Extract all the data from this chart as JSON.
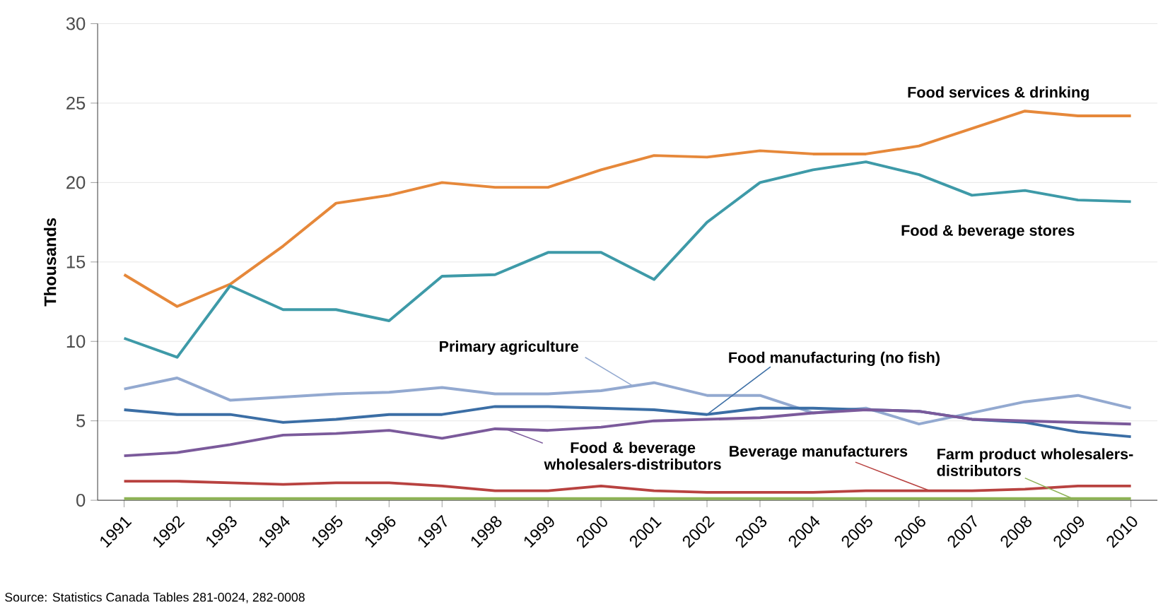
{
  "chart_data": {
    "type": "line",
    "categories": [
      "1991",
      "1992",
      "1993",
      "1994",
      "1995",
      "1996",
      "1997",
      "1998",
      "1999",
      "2000",
      "2001",
      "2002",
      "2003",
      "2004",
      "2005",
      "2006",
      "2007",
      "2008",
      "2009",
      "2010"
    ],
    "ylabel": "Thousands",
    "ylim": [
      0,
      30
    ],
    "yticks": [
      0,
      5,
      10,
      15,
      20,
      25,
      30
    ],
    "grid": "y",
    "marker": "none",
    "line_style": "solid",
    "series": [
      {
        "name": "Food services & drinking",
        "color": "#e6883a",
        "values": [
          14.2,
          12.2,
          13.6,
          16.0,
          18.7,
          19.2,
          20.0,
          19.7,
          19.7,
          20.8,
          21.7,
          21.6,
          22.0,
          21.8,
          21.8,
          22.3,
          23.4,
          24.5,
          24.2,
          24.2
        ]
      },
      {
        "name": "Food & beverage stores",
        "color": "#3e9aa8",
        "values": [
          10.2,
          9.0,
          13.5,
          12.0,
          12.0,
          11.3,
          14.1,
          14.2,
          15.6,
          15.6,
          13.9,
          17.5,
          20.0,
          20.8,
          21.3,
          20.5,
          19.2,
          19.5,
          18.9,
          18.8
        ]
      },
      {
        "name": "Primary agriculture",
        "color": "#93a9d0",
        "values": [
          7.0,
          7.7,
          6.3,
          6.5,
          6.7,
          6.8,
          7.1,
          6.7,
          6.7,
          6.9,
          7.4,
          6.6,
          6.6,
          5.5,
          5.8,
          4.8,
          5.5,
          6.2,
          6.6,
          5.8
        ]
      },
      {
        "name": "Food manufacturing (no fish)",
        "color": "#3b6ea5",
        "values": [
          5.7,
          5.4,
          5.4,
          4.9,
          5.1,
          5.4,
          5.4,
          5.9,
          5.9,
          5.8,
          5.7,
          5.4,
          5.8,
          5.8,
          5.7,
          5.6,
          5.1,
          4.9,
          4.3,
          4.0
        ]
      },
      {
        "name": "Food & beverage wholesalers-distributors",
        "color": "#7b5a9b",
        "values": [
          2.8,
          3.0,
          3.5,
          4.1,
          4.2,
          4.4,
          3.9,
          4.5,
          4.4,
          4.6,
          5.0,
          5.1,
          5.2,
          5.5,
          5.7,
          5.6,
          5.1,
          5.0,
          4.9,
          4.8
        ]
      },
      {
        "name": "Beverage manufacturers",
        "color": "#b84240",
        "values": [
          1.2,
          1.2,
          1.1,
          1.0,
          1.1,
          1.1,
          0.9,
          0.6,
          0.6,
          0.9,
          0.6,
          0.5,
          0.5,
          0.5,
          0.6,
          0.6,
          0.6,
          0.7,
          0.9,
          0.9
        ]
      },
      {
        "name": "Farm product wholesalers-distributors",
        "color": "#8db255",
        "values": [
          0.1,
          0.1,
          0.1,
          0.1,
          0.1,
          0.1,
          0.1,
          0.1,
          0.1,
          0.1,
          0.1,
          0.1,
          0.1,
          0.1,
          0.1,
          0.1,
          0.1,
          0.1,
          0.1,
          0.1
        ]
      }
    ],
    "annotations": [
      "Source: Statistics Canada Tables 281-0024, 282-0008"
    ]
  }
}
